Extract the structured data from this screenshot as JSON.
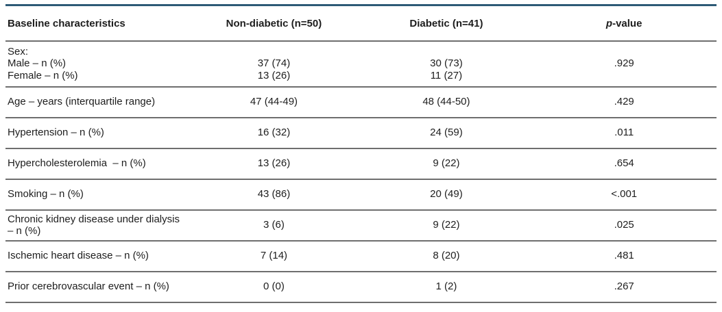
{
  "colors": {
    "top_border": "#2d5a76",
    "row_divider": "#6e6e6e",
    "text": "#1d1d1d",
    "background": "#ffffff"
  },
  "table": {
    "header": {
      "col1": "Baseline characteristics",
      "col2": "Non-diabetic (n=50)",
      "col3": "Diabetic (n=41)",
      "col4_italic": "p",
      "col4_rest": "-value"
    },
    "rows": [
      {
        "label": "Sex:\nMale – n (%)\nFemale – n (%)",
        "nondiabetic": "\n37 (74)\n13 (26)",
        "diabetic": "\n30 (73)\n11 (27)",
        "pvalue": ".929"
      },
      {
        "label": "Age – years (interquartile range)",
        "nondiabetic": "47 (44-49)",
        "diabetic": "48 (44-50)",
        "pvalue": ".429"
      },
      {
        "label": "Hypertension – n (%)",
        "nondiabetic": "16 (32)",
        "diabetic": "24 (59)",
        "pvalue": ".011"
      },
      {
        "label": "Hypercholesterolemia  – n (%)",
        "nondiabetic": "13 (26)",
        "diabetic": "9 (22)",
        "pvalue": ".654"
      },
      {
        "label": "Smoking – n (%)",
        "nondiabetic": "43 (86)",
        "diabetic": "20 (49)",
        "pvalue": "<.001"
      },
      {
        "label": "Chronic kidney disease under dialysis\n– n (%)",
        "nondiabetic": "3 (6)",
        "diabetic": "9 (22)",
        "pvalue": ".025"
      },
      {
        "label": "Ischemic heart disease – n (%)",
        "nondiabetic": "7 (14)",
        "diabetic": "8 (20)",
        "pvalue": ".481"
      },
      {
        "label": "Prior cerebrovascular event – n (%)",
        "nondiabetic": "0 (0)",
        "diabetic": "1 (2)",
        "pvalue": ".267"
      }
    ]
  }
}
